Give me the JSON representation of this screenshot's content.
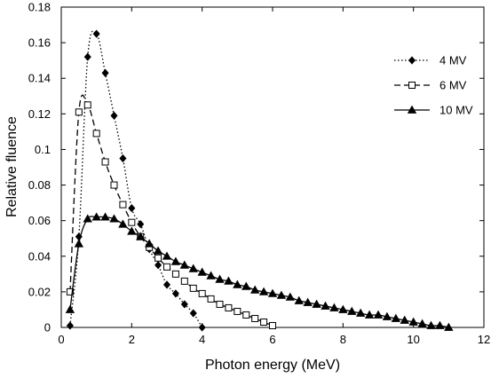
{
  "chart_data": {
    "type": "line",
    "xlabel": "Photon energy (MeV)",
    "ylabel": "Relative fluence",
    "xlim": [
      0,
      12
    ],
    "ylim": [
      0,
      0.18
    ],
    "x_ticks": [
      0,
      2,
      4,
      6,
      8,
      10,
      12
    ],
    "y_ticks": [
      0,
      0.02,
      0.04,
      0.06,
      0.08,
      0.1,
      0.12,
      0.14,
      0.16,
      0.18
    ],
    "x_tick_labels": [
      "0",
      "2",
      "4",
      "6",
      "8",
      "10",
      "12"
    ],
    "y_tick_labels": [
      "0",
      "0.02",
      "0.04",
      "0.06",
      "0.08",
      "0.1",
      "0.12",
      "0.14",
      "0.16",
      "0.18"
    ],
    "grid": false,
    "legend_position": "top-right",
    "series": [
      {
        "name": "4 MV",
        "line_style": "dotted",
        "marker": "filled-diamond",
        "color": "#000000",
        "x": [
          0.25,
          0.5,
          0.75,
          1.0,
          1.25,
          1.5,
          1.75,
          2.0,
          2.25,
          2.5,
          2.75,
          3.0,
          3.25,
          3.5,
          3.75,
          4.0
        ],
        "y": [
          0.001,
          0.051,
          0.152,
          0.165,
          0.143,
          0.119,
          0.095,
          0.067,
          0.058,
          0.044,
          0.035,
          0.024,
          0.019,
          0.013,
          0.008,
          0.0
        ]
      },
      {
        "name": "6 MV",
        "line_style": "dashed",
        "marker": "open-square",
        "color": "#000000",
        "x": [
          0.25,
          0.5,
          0.75,
          1.0,
          1.25,
          1.5,
          1.75,
          2.0,
          2.25,
          2.5,
          2.75,
          3.0,
          3.25,
          3.5,
          3.75,
          4.0,
          4.25,
          4.5,
          4.75,
          5.0,
          5.25,
          5.5,
          5.75,
          6.0
        ],
        "y": [
          0.02,
          0.121,
          0.125,
          0.109,
          0.093,
          0.08,
          0.069,
          0.059,
          0.051,
          0.045,
          0.039,
          0.034,
          0.03,
          0.026,
          0.022,
          0.019,
          0.016,
          0.013,
          0.011,
          0.009,
          0.007,
          0.005,
          0.003,
          0.001
        ]
      },
      {
        "name": "10 MV",
        "line_style": "solid",
        "marker": "filled-triangle",
        "color": "#000000",
        "x": [
          0.25,
          0.5,
          0.75,
          1.0,
          1.25,
          1.5,
          1.75,
          2.0,
          2.25,
          2.5,
          2.75,
          3.0,
          3.25,
          3.5,
          3.75,
          4.0,
          4.25,
          4.5,
          4.75,
          5.0,
          5.25,
          5.5,
          5.75,
          6.0,
          6.25,
          6.5,
          6.75,
          7.0,
          7.25,
          7.5,
          7.75,
          8.0,
          8.25,
          8.5,
          8.75,
          9.0,
          9.25,
          9.5,
          9.75,
          10.0,
          10.25,
          10.5,
          10.75,
          11.0
        ],
        "y": [
          0.01,
          0.047,
          0.061,
          0.062,
          0.062,
          0.061,
          0.058,
          0.054,
          0.051,
          0.047,
          0.043,
          0.04,
          0.037,
          0.035,
          0.033,
          0.031,
          0.029,
          0.027,
          0.026,
          0.024,
          0.023,
          0.021,
          0.02,
          0.019,
          0.018,
          0.017,
          0.015,
          0.014,
          0.013,
          0.012,
          0.011,
          0.01,
          0.009,
          0.008,
          0.007,
          0.007,
          0.006,
          0.005,
          0.004,
          0.003,
          0.002,
          0.001,
          0.001,
          0.0
        ]
      }
    ]
  }
}
